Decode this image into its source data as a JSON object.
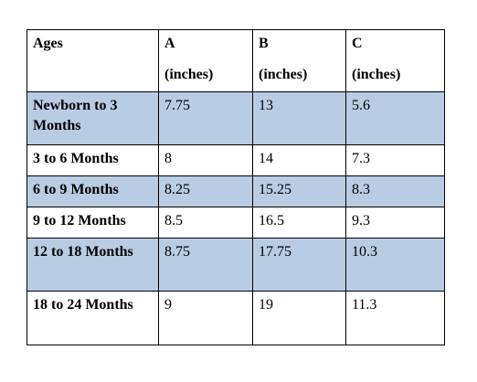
{
  "table": {
    "headers": [
      {
        "label": "Ages",
        "unit": ""
      },
      {
        "label": "A",
        "unit": "(inches)"
      },
      {
        "label": "B",
        "unit": "(inches)"
      },
      {
        "label": "C",
        "unit": "(inches)"
      }
    ],
    "rows": [
      {
        "age": "Newborn to 3 Months",
        "a": "7.75",
        "b": "13",
        "c": "5.6",
        "shaded": true
      },
      {
        "age": "3 to 6 Months",
        "a": "8",
        "b": "14",
        "c": "7.3",
        "shaded": false
      },
      {
        "age": "6 to 9 Months",
        "a": "8.25",
        "b": "15.25",
        "c": "8.3",
        "shaded": true
      },
      {
        "age": "9 to 12 Months",
        "a": "8.5",
        "b": "16.5",
        "c": "9.3",
        "shaded": false
      },
      {
        "age": "12 to 18 Months",
        "a": "8.75",
        "b": "17.75",
        "c": "10.3",
        "shaded": true
      },
      {
        "age": "18 to 24 Months",
        "a": "9",
        "b": "19",
        "c": "11.3",
        "shaded": false
      }
    ],
    "shade_color": "#b8cce4",
    "border_color": "#000000"
  }
}
